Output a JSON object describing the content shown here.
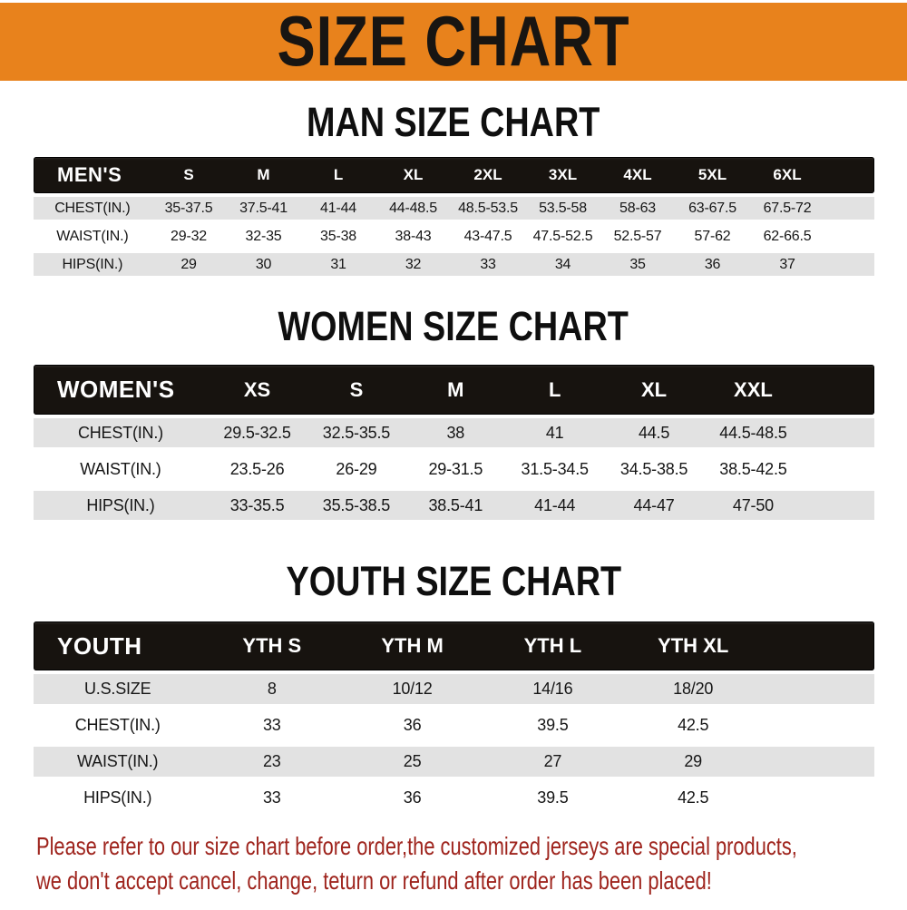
{
  "banner": {
    "title": "SIZE CHART"
  },
  "colors": {
    "banner_bg": "#E8821C",
    "table_header_bg": "#17130F",
    "stripe_row": "#E2E2E2",
    "footer_text": "#9E231C"
  },
  "sections": [
    {
      "title": "MAN SIZE CHART",
      "header_label": "MEN'S",
      "columns": [
        "S",
        "M",
        "L",
        "XL",
        "2XL",
        "3XL",
        "4XL",
        "5XL",
        "6XL"
      ],
      "rows": [
        {
          "label": "CHEST(IN.)",
          "values": [
            "35-37.5",
            "37.5-41",
            "41-44",
            "44-48.5",
            "48.5-53.5",
            "53.5-58",
            "58-63",
            "63-67.5",
            "67.5-72"
          ]
        },
        {
          "label": "WAIST(IN.)",
          "values": [
            "29-32",
            "32-35",
            "35-38",
            "38-43",
            "43-47.5",
            "47.5-52.5",
            "52.5-57",
            "57-62",
            "62-66.5"
          ]
        },
        {
          "label": "HIPS(IN.)",
          "values": [
            "29",
            "30",
            "31",
            "32",
            "33",
            "34",
            "35",
            "36",
            "37"
          ]
        }
      ]
    },
    {
      "title": "WOMEN SIZE CHART",
      "header_label": "WOMEN'S",
      "columns": [
        "XS",
        "S",
        "M",
        "L",
        "XL",
        "XXL"
      ],
      "rows": [
        {
          "label": "CHEST(IN.)",
          "values": [
            "29.5-32.5",
            "32.5-35.5",
            "38",
            "41",
            "44.5",
            "44.5-48.5"
          ]
        },
        {
          "label": "WAIST(IN.)",
          "values": [
            "23.5-26",
            "26-29",
            "29-31.5",
            "31.5-34.5",
            "34.5-38.5",
            "38.5-42.5"
          ]
        },
        {
          "label": "HIPS(IN.)",
          "values": [
            "33-35.5",
            "35.5-38.5",
            "38.5-41",
            "41-44",
            "44-47",
            "47-50"
          ]
        }
      ]
    },
    {
      "title": "YOUTH SIZE CHART",
      "header_label": "YOUTH",
      "columns": [
        "YTH S",
        "YTH M",
        "YTH L",
        "YTH XL"
      ],
      "rows": [
        {
          "label": "U.S.SIZE",
          "values": [
            "8",
            "10/12",
            "14/16",
            "18/20"
          ]
        },
        {
          "label": "CHEST(IN.)",
          "values": [
            "33",
            "36",
            "39.5",
            "42.5"
          ]
        },
        {
          "label": "WAIST(IN.)",
          "values": [
            "23",
            "25",
            "27",
            "29"
          ]
        },
        {
          "label": "HIPS(IN.)",
          "values": [
            "33",
            "36",
            "39.5",
            "42.5"
          ]
        }
      ]
    }
  ],
  "footer": {
    "line1": "Please refer to our size chart before order,the customized jerseys are special products,",
    "line2": "we don't accept cancel, change, teturn or refund after order has been placed!"
  }
}
